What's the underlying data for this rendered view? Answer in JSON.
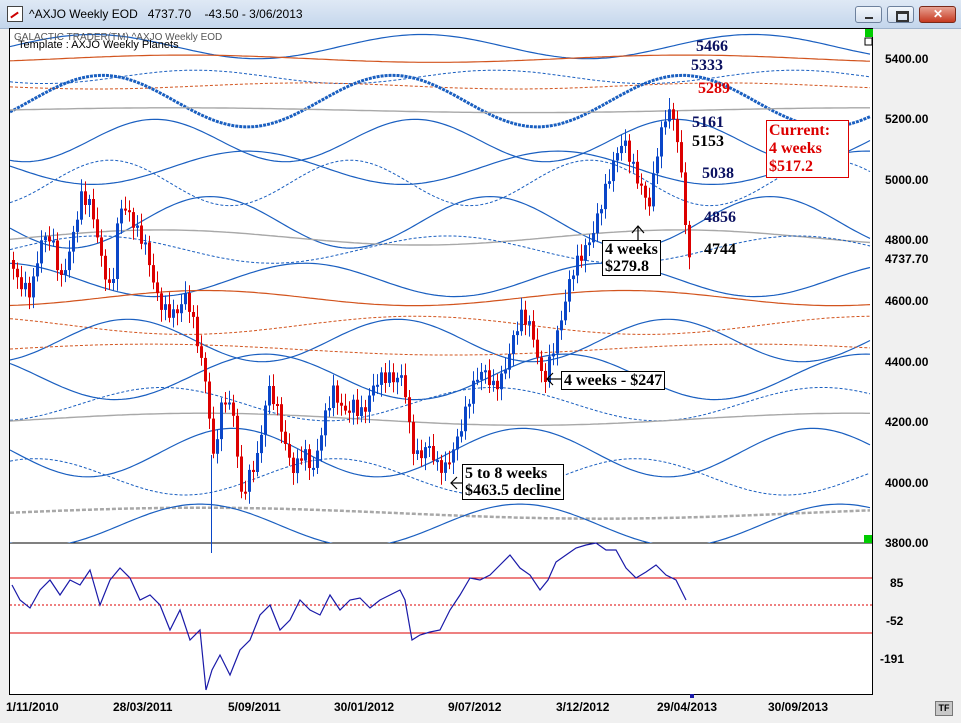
{
  "window": {
    "title": "^AXJO Weekly EOD   4737.70    -43.50 - 3/06/2013"
  },
  "chart_header": {
    "source": "GALACTIC TRADER(TM)    ^AXJO Weekly EOD",
    "template": "Template : AXJO Weekly Planets"
  },
  "levels": {
    "l5466": "5466",
    "l5333": "5333",
    "l5289": "5289",
    "l5161": "5161",
    "l5153": "5153",
    "l5038": "5038",
    "l4856": "4856",
    "l4744": "4744"
  },
  "annotations": {
    "current": [
      "Current:",
      "4 weeks",
      "$517.2"
    ],
    "four_weeks_a": [
      "4 weeks",
      "$279.8"
    ],
    "four_weeks_b": "4 weeks - $247",
    "decline": [
      "5 to 8 weeks",
      "$463.5 decline"
    ]
  },
  "price_axis": [
    "5400.00",
    "5200.00",
    "5000.00",
    "4800.00",
    "4737.70",
    "4600.00",
    "4400.00",
    "4200.00",
    "4000.00",
    "3800.00"
  ],
  "indicator_axis": [
    "85",
    "-52",
    "-191"
  ],
  "date_axis": [
    "1/11/2010",
    "28/03/2011",
    "5/09/2011",
    "30/01/2012",
    "9/07/2012",
    "3/12/2012",
    "29/04/2013",
    "30/09/2013"
  ],
  "tf_button": "TF",
  "colors": {
    "up_bar": "#0a46c8",
    "down_bar": "#dc0000",
    "planet_blue": "#1a5fc0",
    "planet_orange": "#d2541e",
    "planet_grey": "#a8a8a8",
    "indicator": "#1a1aa8",
    "accent_red": "#dd0000"
  },
  "chart_data": {
    "type": "candlestick",
    "price_range": [
      3800,
      5500
    ],
    "indicator_range": [
      -191,
      85
    ],
    "last_close": 4737.7,
    "change": -43.5
  }
}
